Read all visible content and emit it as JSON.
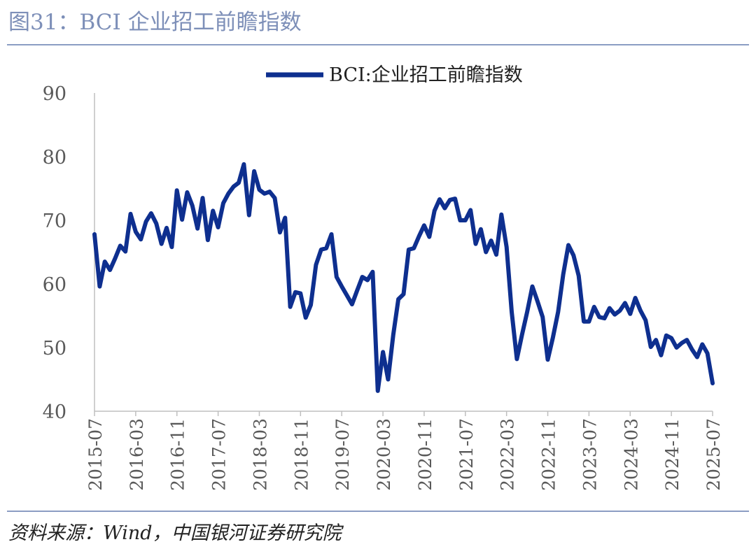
{
  "figure": {
    "title": "图31：BCI 企业招工前瞻指数",
    "source": "资料来源：Wind，中国银河证券研究院"
  },
  "colors": {
    "line": "#0e2f8f",
    "axis": "#bfbfbf",
    "text": "#595959",
    "title": "#7d8fb8"
  },
  "chart_data": {
    "type": "line",
    "title": "",
    "xlabel": "",
    "ylabel": "",
    "ylim": [
      40,
      90
    ],
    "yticks": [
      40,
      50,
      60,
      70,
      80,
      90
    ],
    "grid": false,
    "legend_position": "top-center",
    "xtick_labels": [
      "2015-07",
      "2016-03",
      "2016-11",
      "2017-07",
      "2018-03",
      "2018-11",
      "2019-07",
      "2020-03",
      "2020-11",
      "2021-07",
      "2022-03",
      "2022-11",
      "2023-07",
      "2024-03",
      "2024-11",
      "2025-07"
    ],
    "x": [
      "2015-07",
      "2015-08",
      "2015-09",
      "2015-10",
      "2015-11",
      "2015-12",
      "2016-01",
      "2016-02",
      "2016-03",
      "2016-04",
      "2016-05",
      "2016-06",
      "2016-07",
      "2016-08",
      "2016-09",
      "2016-10",
      "2016-11",
      "2016-12",
      "2017-01",
      "2017-02",
      "2017-03",
      "2017-04",
      "2017-05",
      "2017-06",
      "2017-07",
      "2017-08",
      "2017-09",
      "2017-10",
      "2017-11",
      "2017-12",
      "2018-01",
      "2018-02",
      "2018-03",
      "2018-04",
      "2018-05",
      "2018-06",
      "2018-07",
      "2018-08",
      "2018-09",
      "2018-10",
      "2018-11",
      "2018-12",
      "2019-01",
      "2019-02",
      "2019-03",
      "2019-04",
      "2019-05",
      "2019-06",
      "2019-07",
      "2019-08",
      "2019-09",
      "2019-10",
      "2019-11",
      "2019-12",
      "2020-01",
      "2020-02",
      "2020-03",
      "2020-04",
      "2020-05",
      "2020-06",
      "2020-07",
      "2020-08",
      "2020-09",
      "2020-10",
      "2020-11",
      "2020-12",
      "2021-01",
      "2021-02",
      "2021-03",
      "2021-04",
      "2021-05",
      "2021-06",
      "2021-07",
      "2021-08",
      "2021-09",
      "2021-10",
      "2021-11",
      "2021-12",
      "2022-01",
      "2022-02",
      "2022-03",
      "2022-04",
      "2022-05",
      "2022-06",
      "2022-07",
      "2022-08",
      "2022-09",
      "2022-10",
      "2022-11",
      "2022-12",
      "2023-01",
      "2023-02",
      "2023-03",
      "2023-04",
      "2023-05",
      "2023-06",
      "2023-07",
      "2023-08",
      "2023-09",
      "2023-10",
      "2023-11",
      "2023-12",
      "2024-01",
      "2024-02",
      "2024-03",
      "2024-04",
      "2024-05",
      "2024-06",
      "2024-07",
      "2024-08",
      "2024-09",
      "2024-10",
      "2024-11",
      "2024-12",
      "2025-01",
      "2025-02",
      "2025-03",
      "2025-04",
      "2025-05",
      "2025-06",
      "2025-07"
    ],
    "series": [
      {
        "name": "BCI:企业招工前瞻指数",
        "values": [
          67.8,
          59.6,
          63.5,
          62.2,
          64.0,
          66.0,
          65.1,
          71.0,
          68.2,
          67.0,
          69.8,
          71.1,
          69.5,
          66.3,
          68.8,
          65.8,
          74.7,
          70.1,
          74.4,
          72.3,
          68.7,
          73.5,
          66.9,
          71.5,
          68.9,
          72.7,
          74.2,
          75.3,
          75.9,
          78.8,
          70.8,
          77.7,
          74.8,
          74.2,
          74.5,
          73.5,
          68.1,
          70.4,
          56.4,
          58.7,
          58.5,
          54.7,
          56.7,
          63.0,
          65.4,
          65.6,
          67.8,
          61.1,
          59.6,
          58.2,
          56.8,
          59.0,
          61.1,
          60.6,
          61.9,
          43.2,
          49.3,
          45.0,
          52.0,
          57.6,
          58.4,
          65.4,
          65.6,
          67.5,
          69.2,
          67.4,
          71.5,
          73.3,
          71.9,
          73.2,
          73.4,
          70.0,
          70.0,
          71.6,
          66.3,
          68.6,
          65.0,
          66.8,
          64.6,
          70.9,
          65.8,
          55.6,
          48.2,
          52.0,
          55.6,
          59.6,
          57.3,
          54.8,
          48.1,
          51.6,
          55.6,
          61.5,
          66.1,
          64.5,
          61.3,
          54.1,
          54.1,
          56.4,
          54.8,
          54.6,
          56.2,
          55.2,
          55.8,
          57.0,
          55.3,
          57.8,
          55.8,
          54.3,
          50.1,
          51.2,
          48.8,
          51.9,
          51.5,
          50.0,
          50.7,
          51.2,
          49.7,
          48.5,
          50.5,
          49.1,
          44.4
        ]
      }
    ]
  }
}
